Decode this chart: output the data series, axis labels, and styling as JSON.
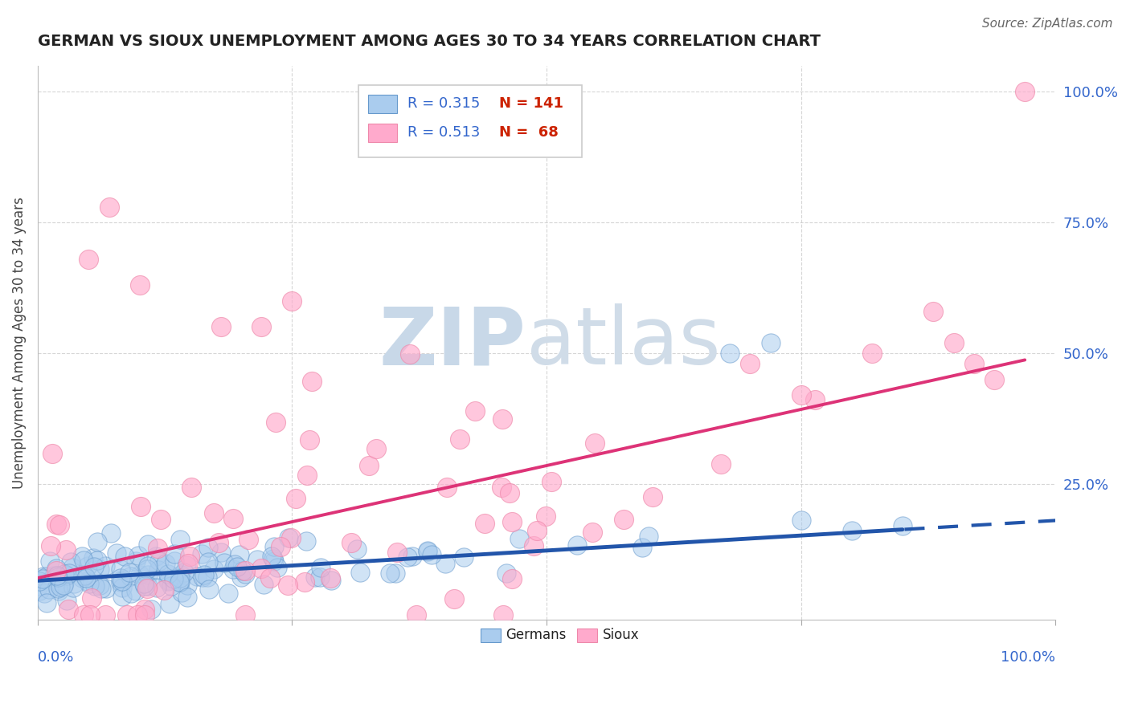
{
  "title": "GERMAN VS SIOUX UNEMPLOYMENT AMONG AGES 30 TO 34 YEARS CORRELATION CHART",
  "source_text": "Source: ZipAtlas.com",
  "ylabel": "Unemployment Among Ages 30 to 34 years",
  "ytick_labels": [
    "25.0%",
    "50.0%",
    "75.0%",
    "100.0%"
  ],
  "ytick_values": [
    0.25,
    0.5,
    0.75,
    1.0
  ],
  "xlim": [
    0,
    1.0
  ],
  "ylim": [
    -0.01,
    1.05
  ],
  "watermark_zip": "ZIP",
  "watermark_atlas": "atlas",
  "legend_german_r": "R = 0.315",
  "legend_german_n": "N = 141",
  "legend_sioux_r": "R = 0.513",
  "legend_sioux_n": "N =  68",
  "german_color": "#aaccee",
  "german_edge_color": "#6699cc",
  "sioux_color": "#ffaacc",
  "sioux_edge_color": "#ee88aa",
  "german_line_color": "#2255aa",
  "sioux_line_color": "#dd3377",
  "background_color": "#ffffff",
  "grid_color": "#cccccc",
  "title_color": "#222222",
  "axis_label_color": "#3366cc",
  "legend_r_color": "#3366cc",
  "legend_n_color": "#cc2200",
  "watermark_zip_color": "#c8d8e8",
  "watermark_atlas_color": "#d0dce8",
  "seed": 77,
  "n_german": 141,
  "n_sioux": 68,
  "german_intercept": 0.065,
  "german_slope": 0.115,
  "sioux_intercept": 0.07,
  "sioux_slope": 0.43
}
